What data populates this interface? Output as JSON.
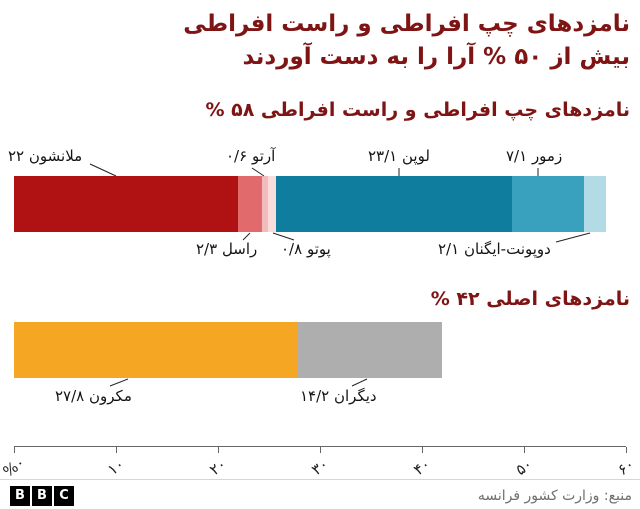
{
  "page": {
    "background": "#ffffff",
    "title": {
      "line1": "نامزدهای چپ افراطی و راست افراطی",
      "line2": "بیش از ۵۰ % آرا را به دست آوردند",
      "color": "#7e1414"
    },
    "footer": {
      "source": "منبع: وزارت کشور فرانسه",
      "logo": [
        "B",
        "B",
        "C"
      ]
    }
  },
  "axis": {
    "ticks": [
      "%۰",
      "۱۰",
      "۲۰",
      "۳۰",
      "۴۰",
      "۵۰",
      "۶۰"
    ],
    "values": [
      0,
      10,
      20,
      30,
      40,
      50,
      60
    ],
    "min": 0,
    "max": 60
  },
  "chart_data": [
    {
      "type": "bar",
      "stacked": true,
      "orientation": "horizontal",
      "title": "نامزدهای چپ افراطی و راست افراطی ۵۸ %",
      "total_percent": 58,
      "xlim": [
        0,
        60
      ],
      "segments": [
        {
          "name": "melenchon",
          "label": "ملانشون ۲۲",
          "value": 22,
          "color": "#b01112"
        },
        {
          "name": "roussel",
          "label": "راسل ۲/۳",
          "value": 2.3,
          "color": "#e06a6c"
        },
        {
          "name": "arthaud",
          "label": "آرتو ۰/۶",
          "value": 0.6,
          "color": "#f2bcbc"
        },
        {
          "name": "poutou",
          "label": "پوتو ۰/۸",
          "value": 0.8,
          "color": "#f9dcdc"
        },
        {
          "name": "lepen",
          "label": "لوپن ۲۳/۱",
          "value": 23.1,
          "color": "#0f7e9e"
        },
        {
          "name": "zemmour",
          "label": "زمور ۷/۱",
          "value": 7.1,
          "color": "#39a0be"
        },
        {
          "name": "dupont-aignan",
          "label": "دوپونت-ایگنان ۲/۱",
          "value": 2.1,
          "color": "#b2dbe6"
        }
      ]
    },
    {
      "type": "bar",
      "stacked": true,
      "orientation": "horizontal",
      "title": "نامزدهای اصلی ۴۲ %",
      "total_percent": 42,
      "xlim": [
        0,
        60
      ],
      "segments": [
        {
          "name": "macron",
          "label": "مکرون ۲۷/۸",
          "value": 27.8,
          "color": "#f5a623"
        },
        {
          "name": "others",
          "label": "دیگران ۱۴/۲",
          "value": 14.2,
          "color": "#aeaeae"
        }
      ]
    }
  ]
}
